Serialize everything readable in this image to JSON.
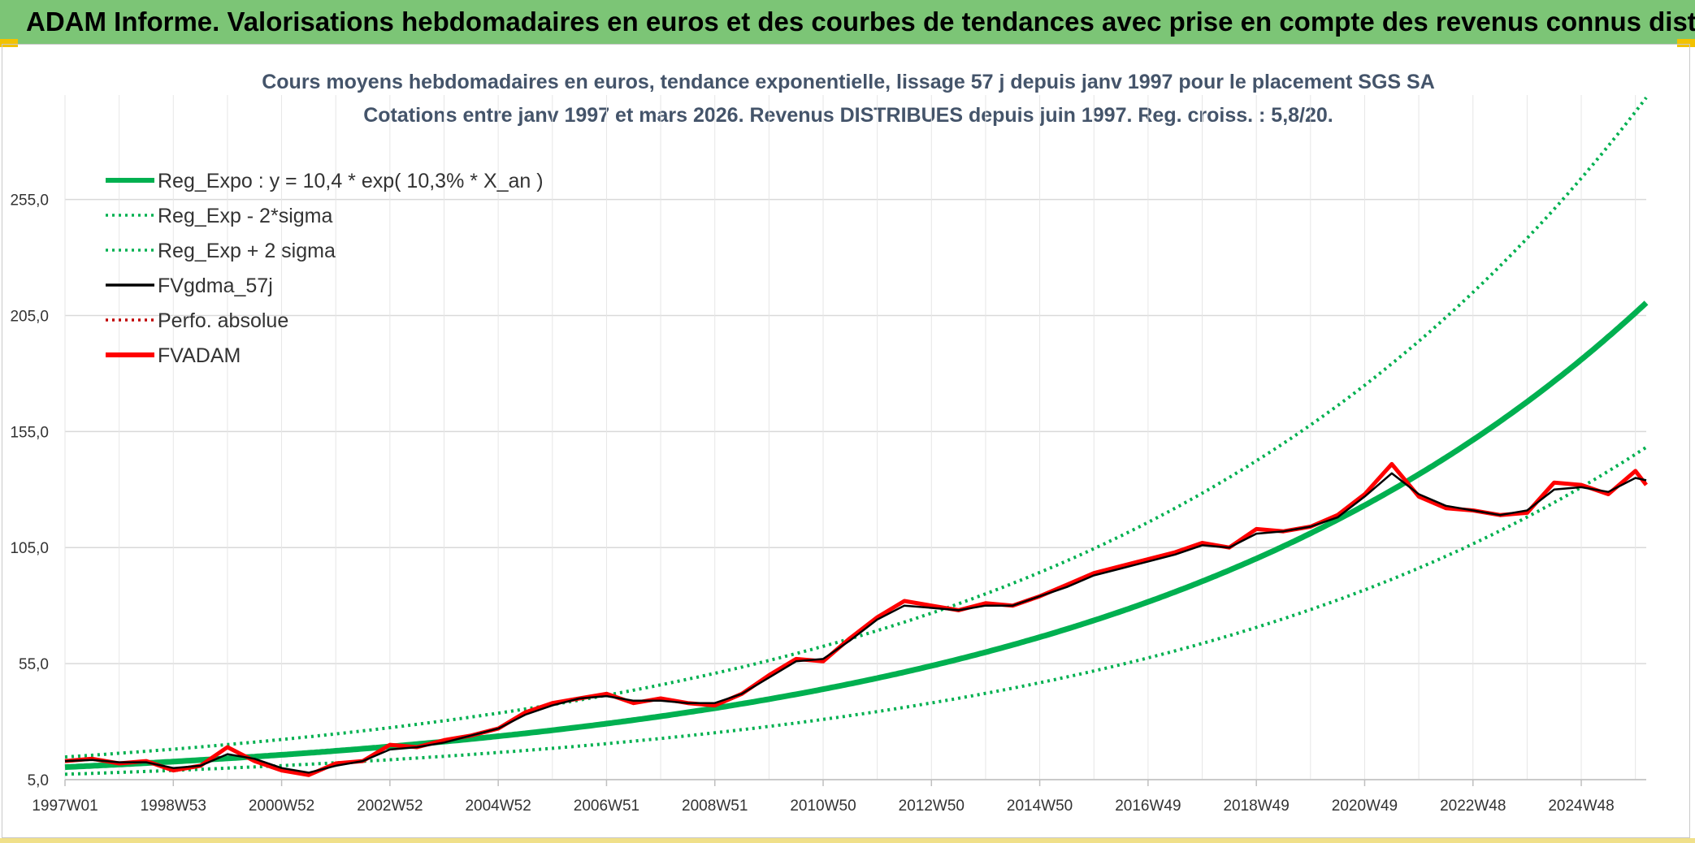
{
  "header": {
    "title": "ADAM Informe. Valorisations hebdomadaires en euros et des courbes de tendances avec prise en compte des revenus connus distribués"
  },
  "colors": {
    "banner": "#7cc576",
    "regression": "#00b050",
    "smoothed": "#000000",
    "price": "#ff0000"
  },
  "chart_data": {
    "type": "line",
    "title": "Cours moyens hebdomadaires en euros, tendance exponentielle, lissage 57 j depuis janv 1997 pour le placement SGS SA",
    "subtitle": "Cotations entre janv 1997 et mars 2026. Revenus DISTRIBUES depuis juin 1997. Reg. croiss. : 5,8/20.",
    "xlabel": "",
    "ylabel": "",
    "x_range_years": [
      1997.0,
      2026.2
    ],
    "ylim": [
      5,
      300
    ],
    "y_ticks": [
      5,
      55,
      105,
      155,
      205,
      255
    ],
    "y_tick_labels": [
      "5,0",
      "55,0",
      "105,0",
      "155,0",
      "205,0",
      "255,0"
    ],
    "x_ticks": [
      1997.0,
      1999.0,
      2001.0,
      2003.0,
      2005.0,
      2007.0,
      2009.0,
      2011.0,
      2013.0,
      2015.0,
      2017.0,
      2019.0,
      2021.0,
      2023.0,
      2025.0
    ],
    "x_tick_labels": [
      "1997W01",
      "1998W53",
      "2000W52",
      "2002W52",
      "2004W52",
      "2006W51",
      "2008W51",
      "2010W50",
      "2012W50",
      "2014W50",
      "2016W49",
      "2018W49",
      "2020W49",
      "2022W48",
      "2024W48"
    ],
    "grid": true,
    "legend_position": "top-left",
    "regression": {
      "a": 10.4,
      "rate": 0.103,
      "sigma_factor": 1.42,
      "cap": 300
    },
    "series": [
      {
        "name": "Reg_Expo : y = 10,4 * exp( 10,3% *  X_an )",
        "style": "solid-thick",
        "color": "#00b050"
      },
      {
        "name": "Reg_Exp - 2*sigma",
        "style": "dotted",
        "color": "#00b050"
      },
      {
        "name": "Reg_Exp + 2 sigma",
        "style": "dotted",
        "color": "#00b050"
      },
      {
        "name": "FVgdma_57j",
        "style": "solid",
        "color": "#000000"
      },
      {
        "name": "Perfo. absolue",
        "style": "dotted",
        "color": "#c00000"
      },
      {
        "name": "FVADAM",
        "style": "solid-thick",
        "color": "#ff0000"
      }
    ],
    "price_points": {
      "x": [
        1997.0,
        1997.5,
        1998.0,
        1998.5,
        1999.0,
        1999.5,
        2000.0,
        2000.5,
        2001.0,
        2001.5,
        2002.0,
        2002.5,
        2003.0,
        2003.5,
        2004.0,
        2004.5,
        2005.0,
        2005.5,
        2006.0,
        2006.5,
        2007.0,
        2007.5,
        2008.0,
        2008.5,
        2009.0,
        2009.5,
        2010.0,
        2010.5,
        2011.0,
        2011.5,
        2012.0,
        2012.5,
        2013.0,
        2013.5,
        2014.0,
        2014.5,
        2015.0,
        2015.5,
        2016.0,
        2016.5,
        2017.0,
        2017.5,
        2018.0,
        2018.5,
        2019.0,
        2019.5,
        2020.0,
        2020.5,
        2021.0,
        2021.5,
        2022.0,
        2022.5,
        2023.0,
        2023.5,
        2024.0,
        2024.5,
        2025.0,
        2025.5,
        2026.0,
        2026.2
      ],
      "y": [
        13,
        14,
        12,
        13,
        9,
        11,
        19,
        13,
        9,
        7,
        12,
        13,
        20,
        19,
        22,
        24,
        27,
        34,
        38,
        40,
        42,
        38,
        40,
        38,
        37,
        42,
        50,
        57,
        56,
        66,
        75,
        82,
        80,
        78,
        81,
        80,
        84,
        89,
        94,
        97,
        100,
        103,
        107,
        105,
        113,
        112,
        114,
        119,
        128,
        141,
        127,
        122,
        121,
        119,
        120,
        133,
        132,
        128,
        138,
        132
      ]
    },
    "smoothed_points": {
      "x": [
        1997.0,
        1997.5,
        1998.0,
        1998.5,
        1999.0,
        1999.5,
        2000.0,
        2000.5,
        2001.0,
        2001.5,
        2002.0,
        2002.5,
        2003.0,
        2003.5,
        2004.0,
        2004.5,
        2005.0,
        2005.5,
        2006.0,
        2006.5,
        2007.0,
        2007.5,
        2008.0,
        2008.5,
        2009.0,
        2009.5,
        2010.0,
        2010.5,
        2011.0,
        2011.5,
        2012.0,
        2012.5,
        2013.0,
        2013.5,
        2014.0,
        2014.5,
        2015.0,
        2015.5,
        2016.0,
        2016.5,
        2017.0,
        2017.5,
        2018.0,
        2018.5,
        2019.0,
        2019.5,
        2020.0,
        2020.5,
        2021.0,
        2021.5,
        2022.0,
        2022.5,
        2023.0,
        2023.5,
        2024.0,
        2024.5,
        2025.0,
        2025.5,
        2026.0,
        2026.2
      ],
      "y": [
        13,
        13.5,
        12.5,
        12.5,
        10,
        11,
        16,
        14,
        10,
        8,
        11,
        13,
        18,
        19,
        21,
        24,
        27,
        33,
        37,
        40,
        41,
        39,
        39,
        38,
        38,
        42,
        49,
        56,
        57,
        65,
        74,
        80,
        79,
        78,
        80,
        80,
        84,
        88,
        93,
        96,
        99,
        102,
        106,
        105,
        111,
        112,
        114,
        118,
        127,
        137,
        128,
        123,
        121,
        119,
        121,
        130,
        131,
        129,
        135,
        134
      ]
    }
  }
}
